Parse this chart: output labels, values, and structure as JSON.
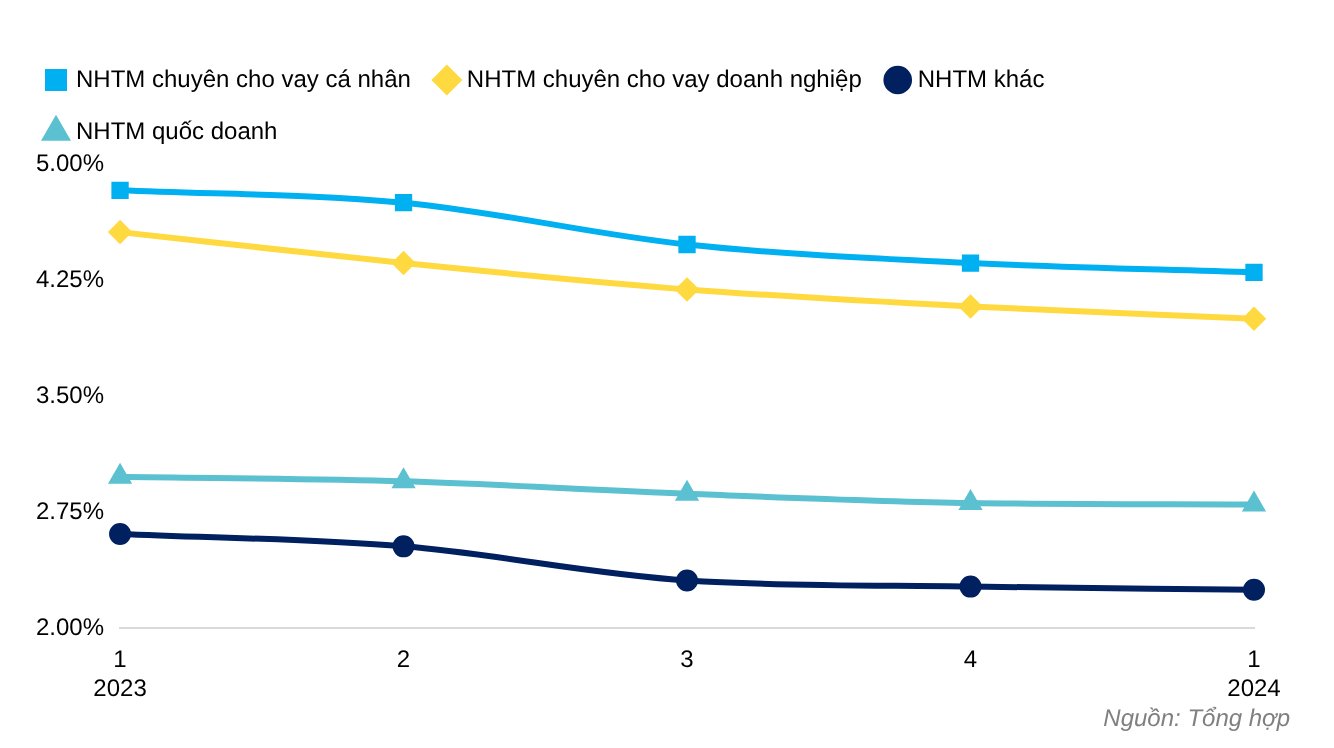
{
  "chart_data": {
    "type": "line",
    "categories": [
      "1\n2023",
      "2",
      "3",
      "4",
      "1\n2024"
    ],
    "series": [
      {
        "name": "NHTM chuyên cho vay cá nhân",
        "color": "#00b0f0",
        "marker": "square",
        "values": [
          4.83,
          4.75,
          4.48,
          4.36,
          4.3
        ]
      },
      {
        "name": "NHTM chuyên cho vay doanh nghiệp",
        "color": "#ffd940",
        "marker": "diamond",
        "values": [
          4.56,
          4.36,
          4.19,
          4.08,
          4.0
        ]
      },
      {
        "name": "NHTM khác",
        "color": "#002060",
        "marker": "circle",
        "values": [
          2.61,
          2.53,
          2.31,
          2.27,
          2.25
        ]
      },
      {
        "name": "NHTM quốc doanh",
        "color": "#5bc0d0",
        "marker": "triangle",
        "values": [
          2.98,
          2.95,
          2.87,
          2.81,
          2.8
        ]
      }
    ],
    "ylim": [
      2,
      5
    ],
    "yticks": [
      {
        "value": 2,
        "label": "2.00%"
      },
      {
        "value": 2.75,
        "label": "2.75%"
      },
      {
        "value": 3.5,
        "label": "3.50%"
      },
      {
        "value": 4.25,
        "label": "4.25%"
      },
      {
        "value": 5,
        "label": "5.00%"
      }
    ],
    "grid": false,
    "legend": "top",
    "line_style": "solid",
    "annotations": [
      "Nguồn: Tổng hợp"
    ]
  }
}
